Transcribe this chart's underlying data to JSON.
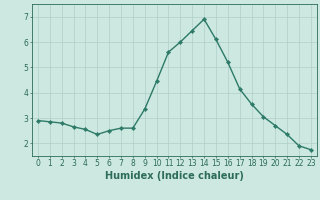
{
  "x": [
    0,
    1,
    2,
    3,
    4,
    5,
    6,
    7,
    8,
    9,
    10,
    11,
    12,
    13,
    14,
    15,
    16,
    17,
    18,
    19,
    20,
    21,
    22,
    23
  ],
  "y": [
    2.9,
    2.85,
    2.8,
    2.65,
    2.55,
    2.35,
    2.5,
    2.6,
    2.6,
    3.35,
    4.45,
    5.6,
    6.0,
    6.45,
    6.9,
    6.1,
    5.2,
    4.15,
    3.55,
    3.05,
    2.7,
    2.35,
    1.9,
    1.75
  ],
  "line_color": "#2d7a68",
  "marker": "D",
  "marker_size": 2.2,
  "bg_color": "#cce8e0",
  "grid_color": "#b0cfc8",
  "xlabel": "Humidex (Indice chaleur)",
  "xlabel_color": "#2d6b5a",
  "tick_color": "#2d6b5a",
  "axis_color": "#2d6b5a",
  "ylim": [
    1.5,
    7.5
  ],
  "yticks": [
    2,
    3,
    4,
    5,
    6,
    7
  ],
  "xlim": [
    -0.5,
    23.5
  ],
  "xticks": [
    0,
    1,
    2,
    3,
    4,
    5,
    6,
    7,
    8,
    9,
    10,
    11,
    12,
    13,
    14,
    15,
    16,
    17,
    18,
    19,
    20,
    21,
    22,
    23
  ],
  "xticklabels": [
    "0",
    "1",
    "2",
    "3",
    "4",
    "5",
    "6",
    "7",
    "8",
    "9",
    "10",
    "11",
    "12",
    "13",
    "14",
    "15",
    "16",
    "17",
    "18",
    "19",
    "20",
    "21",
    "22",
    "23"
  ],
  "xlabel_fontsize": 7,
  "tick_fontsize": 5.5,
  "line_width": 1.0
}
